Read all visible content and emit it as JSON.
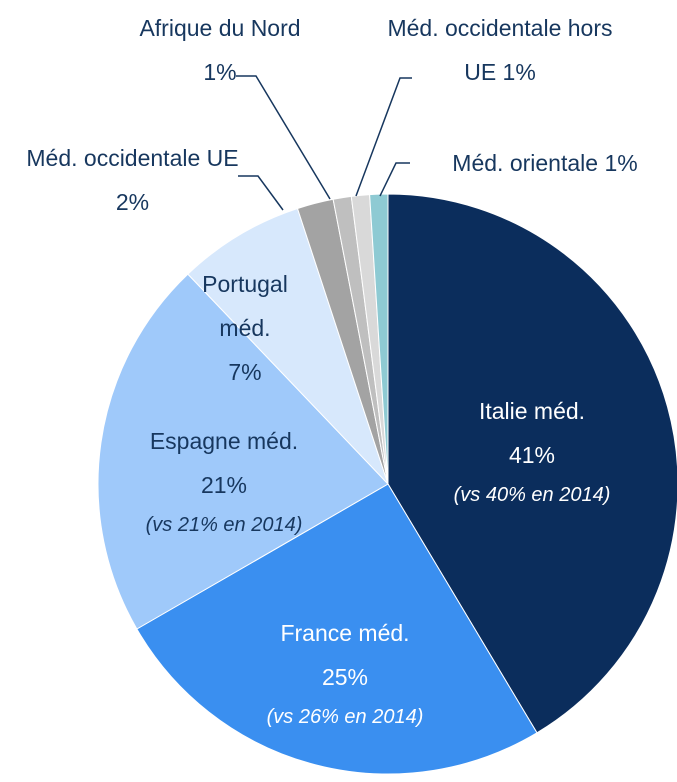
{
  "chart_data": {
    "type": "pie",
    "categories": [
      "Italie méd.",
      "France méd.",
      "Espagne méd.",
      "Portugal méd.",
      "Méd. occidentale UE",
      "Afrique du Nord",
      "Méd. occidentale hors UE",
      "Méd. orientale"
    ],
    "values": [
      41,
      25,
      21,
      7,
      2,
      1,
      1,
      1
    ],
    "value_labels": [
      "41%",
      "25%",
      "21%",
      "7%",
      "2%",
      "1%",
      "1%",
      "1%"
    ],
    "notes": [
      "(vs 40% en 2014)",
      "(vs 26% en 2014)",
      "(vs 21% en 2014)",
      null,
      null,
      null,
      null,
      null
    ],
    "colors": [
      "#0b2d5c",
      "#3a8ff0",
      "#9fc9fa",
      "#d7e8fc",
      "#a3a3a3",
      "#bfbfbf",
      "#d9d9d9",
      "#8ecad3"
    ]
  }
}
